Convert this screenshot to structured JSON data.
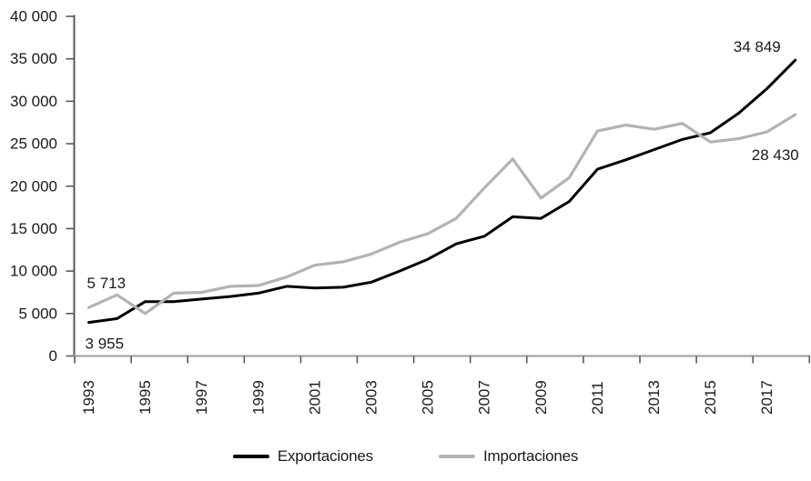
{
  "figure": {
    "legend_items": [
      {
        "label": "Exportaciones",
        "color": "#000000"
      },
      {
        "label": "Importaciones",
        "color": "#b3b3b3"
      }
    ]
  },
  "chart_data": {
    "type": "line",
    "title": "",
    "x": [
      1993,
      1994,
      1995,
      1996,
      1997,
      1998,
      1999,
      2000,
      2001,
      2002,
      2003,
      2004,
      2005,
      2006,
      2007,
      2008,
      2009,
      2010,
      2011,
      2012,
      2013,
      2014,
      2015,
      2016,
      2017,
      2018
    ],
    "xtick_labels": [
      "1993",
      "1995",
      "1997",
      "1999",
      "2001",
      "2003",
      "2005",
      "2007",
      "2009",
      "2011",
      "2013",
      "2015",
      "2017"
    ],
    "ylim": [
      0,
      40000
    ],
    "ytick_step": 5000,
    "ytick_labels": [
      "0",
      "5 000",
      "10 000",
      "15 000",
      "20 000",
      "25 000",
      "30 000",
      "35 000",
      "40 000"
    ],
    "grid": "off",
    "legend_position": "bottom-center",
    "series": [
      {
        "name": "Exportaciones",
        "color": "#000000",
        "values": [
          3955,
          4400,
          6400,
          6400,
          6700,
          7000,
          7400,
          8200,
          8000,
          8100,
          8700,
          10000,
          11400,
          13200,
          14100,
          16400,
          16200,
          18200,
          22000,
          23100,
          24300,
          25500,
          26300,
          28600,
          31500,
          34849
        ]
      },
      {
        "name": "Importaciones",
        "color": "#b3b3b3",
        "values": [
          5713,
          7200,
          5000,
          7400,
          7500,
          8200,
          8300,
          9300,
          10700,
          11100,
          12000,
          13400,
          14400,
          16200,
          19800,
          23200,
          18600,
          21000,
          26500,
          27200,
          26700,
          27400,
          25200,
          25600,
          26400,
          28430
        ]
      }
    ],
    "annotations": [
      {
        "text": "5 713",
        "series_index": 1,
        "point_index": 0,
        "placement": "above"
      },
      {
        "text": "3 955",
        "series_index": 0,
        "point_index": 0,
        "placement": "below"
      },
      {
        "text": "34 849",
        "series_index": 0,
        "point_index": 25,
        "placement": "above"
      },
      {
        "text": "28 430",
        "series_index": 1,
        "point_index": 25,
        "placement": "below"
      }
    ]
  }
}
